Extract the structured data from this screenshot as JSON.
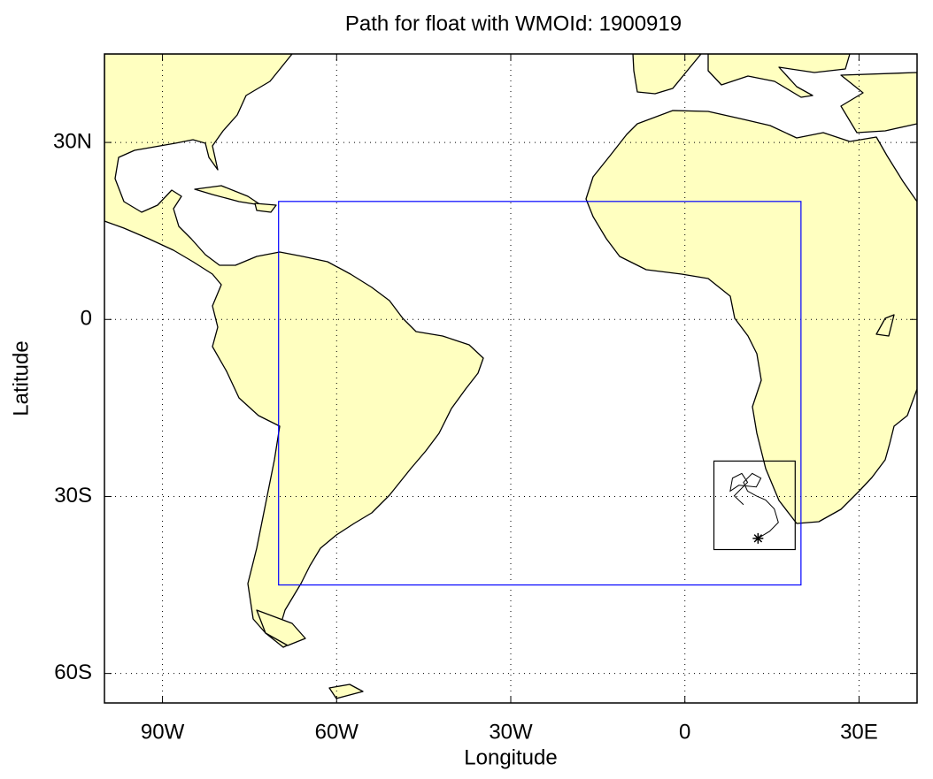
{
  "chart_data": {
    "type": "map",
    "title": "Path for float with WMOId: 1900919",
    "xlabel": "Longitude",
    "ylabel": "Latitude",
    "xlim": [
      -100,
      40
    ],
    "ylim": [
      -65,
      45
    ],
    "xticks": [
      {
        "value": -90,
        "label": "90W"
      },
      {
        "value": -60,
        "label": "60W"
      },
      {
        "value": -30,
        "label": "30W"
      },
      0,
      {
        "value": 30,
        "label": "30E"
      }
    ],
    "yticks": [
      {
        "value": 30,
        "label": "30N"
      },
      0,
      {
        "value": -30,
        "label": "30S"
      },
      {
        "value": -60,
        "label": "60S"
      }
    ],
    "grid": true,
    "regions": [
      {
        "lon": [
          -70,
          20
        ],
        "lat": [
          -45,
          20
        ],
        "color": "#0000ff"
      },
      {
        "lon": [
          5,
          19
        ],
        "lat": [
          -39,
          -24
        ],
        "color": "#000000"
      }
    ],
    "float_path": {
      "color": "#000000",
      "lon": [
        12.6,
        14.6,
        16.1,
        15.4,
        13.9,
        12.3,
        10.8,
        10.1,
        11.6,
        13.1,
        12.3,
        9.3,
        7.8,
        8.2,
        9.8,
        10.8,
        8.5,
        10.1
      ],
      "lat": [
        -37.1,
        -35.9,
        -34.4,
        -32.1,
        -30.6,
        -29.9,
        -29.1,
        -27.6,
        -26.1,
        -26.9,
        -28.4,
        -28.1,
        -29.1,
        -26.9,
        -26.1,
        -27.6,
        -29.9,
        -31.4
      ]
    }
  }
}
